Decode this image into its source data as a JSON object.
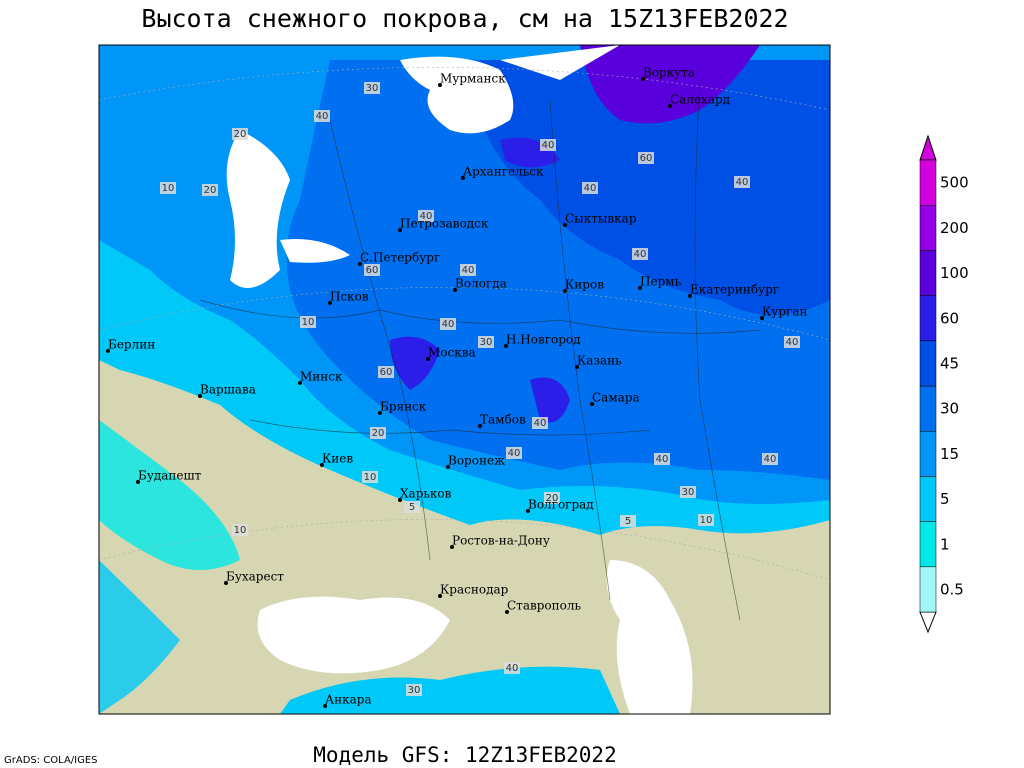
{
  "header": {
    "title": "Высота снежного покрова, см на 15Z13FEB2022"
  },
  "footer": {
    "model": "Модель GFS: 12Z13FEB2022",
    "credit": "GrADS: COLA/IGES"
  },
  "legend": {
    "levels": [
      0.5,
      1,
      5,
      15,
      30,
      45,
      60,
      100,
      200,
      500
    ],
    "colors": [
      "#ffffff",
      "#a0f8f8",
      "#00e8e8",
      "#00c8f8",
      "#0096f8",
      "#0070f0",
      "#0050e6",
      "#2a1ee8",
      "#5a00dc",
      "#9600e6",
      "#d200dc"
    ]
  },
  "cities": [
    "Мурманск",
    "Воркута",
    "Салехард",
    "Архангельск",
    "Петрозаводск",
    "Сыктывкар",
    "С.Петербург",
    "Вологда",
    "Киров",
    "Пермь",
    "Екатеринбург",
    "Псков",
    "Курган",
    "Берлин",
    "Н.Новгород",
    "Москва",
    "Казань",
    "Минск",
    "Варшава",
    "Самара",
    "Брянск",
    "Тамбов",
    "Киев",
    "Воронеж",
    "Будапешт",
    "Харьков",
    "Волгоград",
    "Ростов-на-Дону",
    "Бухарест",
    "Краснодар",
    "Ставрополь",
    "Анкара"
  ],
  "contour_labels": [
    30,
    40,
    20,
    20,
    10,
    40,
    60,
    40,
    30,
    40,
    60,
    40,
    40,
    40,
    10,
    40,
    60,
    40,
    40,
    40,
    10,
    20,
    40,
    30,
    5,
    5,
    10,
    40,
    40,
    10,
    20,
    30
  ]
}
